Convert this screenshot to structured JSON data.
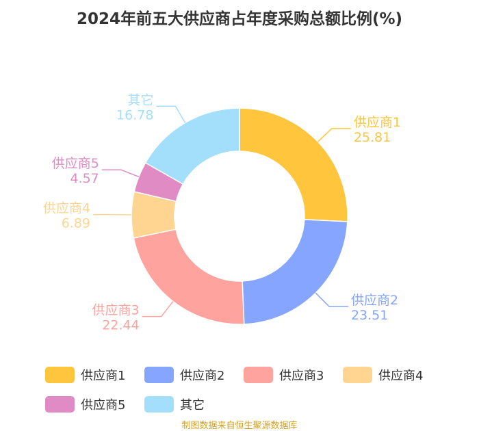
{
  "title": "2024年前五大供应商占年度采购总额比例(%)",
  "source_text": "制图数据来自恒生聚源数据库",
  "chart_data": {
    "type": "pie",
    "donut": true,
    "title": "2024年前五大供应商占年度采购总额比例(%)",
    "legend_position": "bottom",
    "slices": [
      {
        "name": "供应商1",
        "value": 25.81,
        "label": "25.81",
        "color": "#FFC53D"
      },
      {
        "name": "供应商2",
        "value": 23.51,
        "label": "23.51",
        "color": "#85A5FF"
      },
      {
        "name": "供应商3",
        "value": 22.44,
        "label": "22.44",
        "color": "#FFA39E"
      },
      {
        "name": "供应商4",
        "value": 6.89,
        "label": "6.89",
        "color": "#FFD591"
      },
      {
        "name": "供应商5",
        "value": 4.57,
        "label": "4.57",
        "color": "#E08BC4"
      },
      {
        "name": "其它",
        "value": 16.78,
        "label": "16.78",
        "color": "#A3DFFB"
      }
    ]
  }
}
